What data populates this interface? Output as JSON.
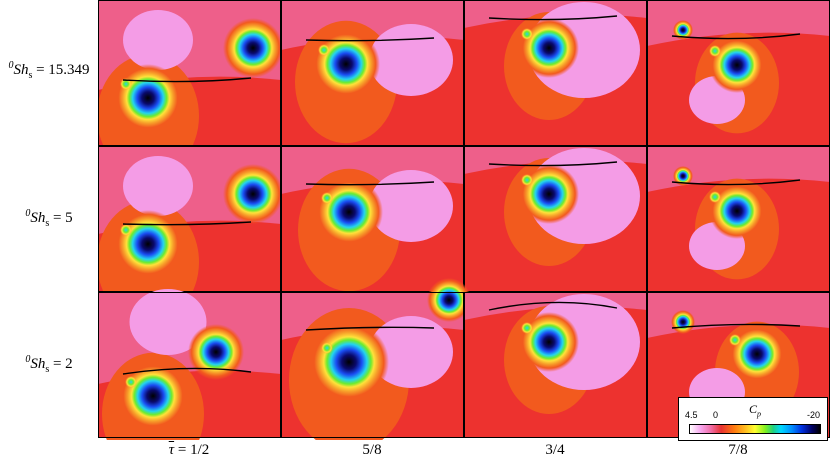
{
  "rows": [
    {
      "sup": "0",
      "sym": "Sh",
      "sub": "s",
      "eq": " = 15.349"
    },
    {
      "sup": "0",
      "sym": "Sh",
      "sub": "s",
      "eq": " = 5"
    },
    {
      "sup": "0",
      "sym": "Sh",
      "sub": "s",
      "eq": " = 2"
    }
  ],
  "columns": {
    "tau_symbol": "τ",
    "tau_eq": " = 1/2",
    "labels": [
      "5/8",
      "3/4",
      "7/8"
    ]
  },
  "colorbar": {
    "title": "C",
    "title_sub": "p",
    "min_label": "4.5",
    "zero_label": "0",
    "max_label": "-20"
  },
  "colors": {
    "background_pink": "#ee5f8a",
    "light_pink": "#f49ce6",
    "red": "#ec2f2a",
    "orange_red": "#f25a1e",
    "orange": "#f7a02a",
    "yellow": "#ffe23a",
    "green": "#6bec2f",
    "cyan": "#23d3f0",
    "blue": "#1a4df2",
    "navy": "#0a0a6e",
    "black": "#000000"
  }
}
